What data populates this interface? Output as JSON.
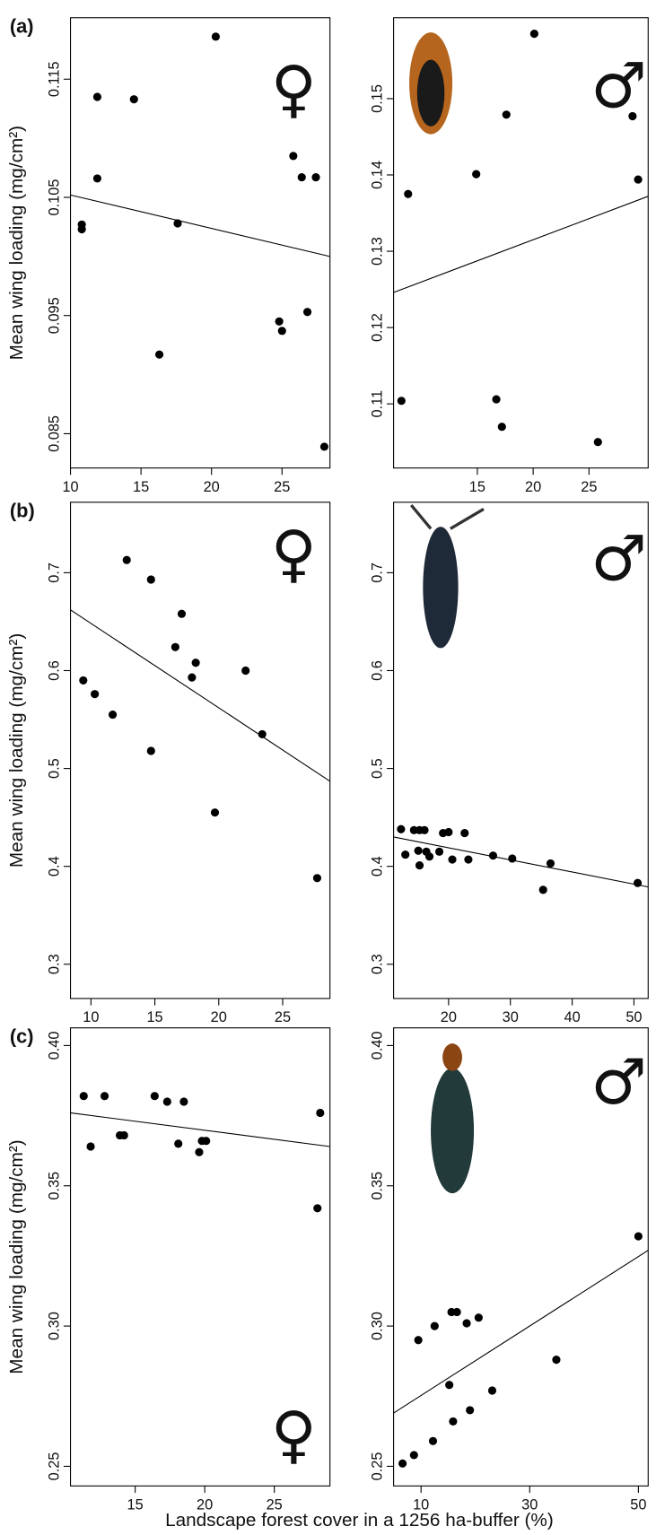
{
  "xlabel": "Landscape forest cover in a 1256 ha-buffer (%)",
  "chart_data": [
    {
      "type": "scatter",
      "panel_label": "(a)",
      "ylabel": "Mean wing loading (mg/cm²)",
      "sex_symbol": "♀",
      "x": [
        10.8,
        10.8,
        11.9,
        11.9,
        14.5,
        16.3,
        17.6,
        20.3,
        24.8,
        25.0,
        25.8,
        26.4,
        26.8,
        27.4,
        28.0
      ],
      "values": [
        0.1027,
        0.1023,
        0.1135,
        0.1066,
        0.1133,
        0.0917,
        0.1028,
        0.1186,
        0.0945,
        0.0937,
        0.1085,
        0.1067,
        0.0953,
        0.1067,
        0.0839
      ],
      "trend": {
        "x": [
          10,
          28.4
        ],
        "y": [
          0.1052,
          0.1
        ]
      },
      "color": "#000000",
      "xlim": [
        10,
        28.4
      ],
      "ylim": [
        0.0821,
        0.1202
      ],
      "xticks": [
        10,
        15,
        20,
        25
      ],
      "yticks": [
        0.085,
        0.095,
        0.105,
        0.115
      ]
    },
    {
      "type": "scatter",
      "sex_symbol": "♂",
      "x": [
        8.2,
        8.8,
        14.9,
        16.7,
        17.2,
        17.6,
        20.1,
        25.8,
        28.9,
        29.4
      ],
      "values": [
        0.1104,
        0.1375,
        0.1401,
        0.1106,
        0.107,
        0.1479,
        0.1585,
        0.105,
        0.1477,
        0.1394
      ],
      "trend": {
        "x": [
          7.5,
          30.3
        ],
        "y": [
          0.1246,
          0.1372
        ]
      },
      "color": "#000000",
      "xlim": [
        7.5,
        30.3
      ],
      "ylim": [
        0.1016,
        0.1606
      ],
      "xticks": [
        15,
        20,
        25
      ],
      "yticks": [
        0.11,
        0.12,
        0.13,
        0.14,
        0.15
      ]
    },
    {
      "type": "scatter",
      "panel_label": "(b)",
      "ylabel": "Mean wing loading (mg/cm²)",
      "sex_symbol": "♀",
      "x": [
        9.4,
        10.3,
        11.7,
        12.8,
        14.7,
        14.7,
        16.6,
        17.1,
        17.9,
        18.2,
        19.7,
        22.1,
        23.4,
        27.7
      ],
      "values": [
        0.59,
        0.576,
        0.555,
        0.713,
        0.693,
        0.518,
        0.624,
        0.658,
        0.593,
        0.608,
        0.455,
        0.6,
        0.535,
        0.388
      ],
      "trend": {
        "x": [
          8.4,
          28.7
        ],
        "y": [
          0.662,
          0.487
        ]
      },
      "color": "#000000",
      "xlim": [
        8.4,
        28.7
      ],
      "ylim": [
        0.265,
        0.772
      ],
      "xticks": [
        10,
        15,
        20,
        25
      ],
      "yticks": [
        0.3,
        0.4,
        0.5,
        0.6,
        0.7
      ]
    },
    {
      "type": "scatter",
      "sex_symbol": "♂",
      "x": [
        12.3,
        13.0,
        14.4,
        15.1,
        15.3,
        15.3,
        16.1,
        16.4,
        16.9,
        18.5,
        19.1,
        20.0,
        20.6,
        22.6,
        23.2,
        27.2,
        30.3,
        35.3,
        36.5,
        50.6
      ],
      "values": [
        0.438,
        0.412,
        0.437,
        0.416,
        0.437,
        0.401,
        0.437,
        0.415,
        0.41,
        0.415,
        0.434,
        0.435,
        0.407,
        0.434,
        0.407,
        0.411,
        0.408,
        0.376,
        0.403,
        0.383
      ],
      "trend": {
        "x": [
          11.1,
          52.3
        ],
        "y": [
          0.43,
          0.379
        ]
      },
      "color": "#000000",
      "xlim": [
        11.1,
        52.3
      ],
      "ylim": [
        0.265,
        0.772
      ],
      "xticks": [
        20,
        30,
        40,
        50
      ],
      "yticks": [
        0.3,
        0.4,
        0.5,
        0.6,
        0.7
      ]
    },
    {
      "type": "scatter",
      "panel_label": "(c)",
      "ylabel": "Mean wing loading (mg/cm²)",
      "sex_symbol": "♀",
      "x": [
        11.3,
        11.8,
        12.8,
        13.9,
        14.2,
        16.4,
        17.3,
        18.1,
        18.5,
        19.6,
        19.8,
        20.1,
        28.1,
        28.3
      ],
      "values": [
        0.382,
        0.364,
        0.382,
        0.368,
        0.368,
        0.382,
        0.38,
        0.365,
        0.38,
        0.362,
        0.366,
        0.366,
        0.342,
        0.376
      ],
      "trend": {
        "x": [
          10.35,
          29.0
        ],
        "y": [
          0.376,
          0.364
        ]
      },
      "color": "#000000",
      "xlim": [
        10.35,
        29.0
      ],
      "ylim": [
        0.243,
        0.4063
      ],
      "xticks": [
        15,
        20,
        25
      ],
      "yticks": [
        0.25,
        {
          "value": 0.3,
          "label": "0.30"
        },
        0.35,
        {
          "value": 0.4,
          "label": "0.40"
        }
      ]
    },
    {
      "type": "scatter",
      "sex_symbol": "♂",
      "x": [
        6.6,
        8.7,
        9.5,
        12.2,
        12.5,
        15.2,
        15.6,
        15.9,
        16.6,
        18.4,
        19.0,
        20.6,
        23.1,
        34.9,
        50.0
      ],
      "values": [
        0.251,
        0.254,
        0.295,
        0.259,
        0.3,
        0.279,
        0.305,
        0.266,
        0.305,
        0.301,
        0.27,
        0.303,
        0.277,
        0.288,
        0.332
      ],
      "trend": {
        "x": [
          4.95,
          51.8
        ],
        "y": [
          0.269,
          0.327
        ]
      },
      "color": "#000000",
      "xlim": [
        4.95,
        51.8
      ],
      "ylim": [
        0.243,
        0.4063
      ],
      "xticks": [
        10,
        30,
        50
      ],
      "yticks": [
        0.25,
        {
          "value": 0.3,
          "label": "0.30"
        },
        0.35,
        {
          "value": 0.4,
          "label": "0.40"
        }
      ]
    }
  ]
}
